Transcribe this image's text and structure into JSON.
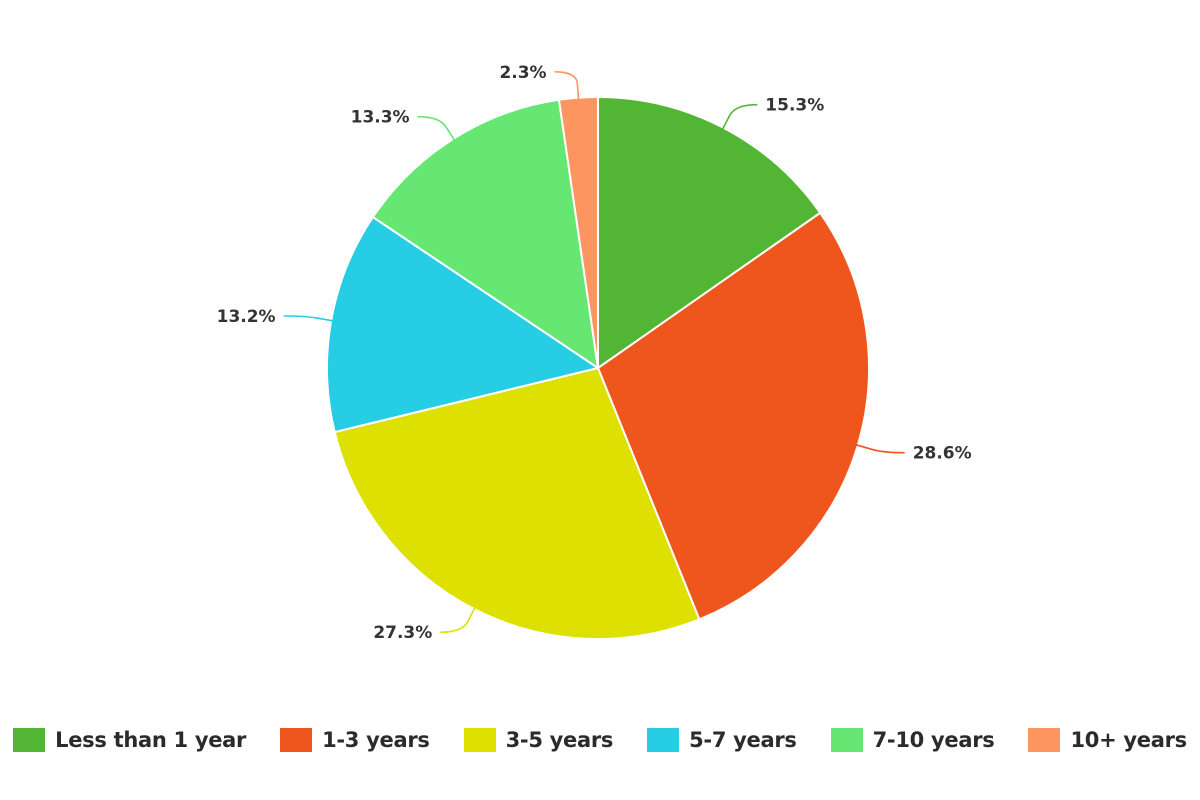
{
  "chart_data": {
    "type": "pie",
    "title": "",
    "legend_position": "bottom",
    "slices": [
      {
        "name": "Less than 1 year",
        "value": 15.3,
        "label": "15.3%",
        "color": "#52b634"
      },
      {
        "name": "1-3 years",
        "value": 28.6,
        "label": "28.6%",
        "color": "#ef561d"
      },
      {
        "name": "3-5 years",
        "value": 27.3,
        "label": "27.3%",
        "color": "#dde000"
      },
      {
        "name": "5-7 years",
        "value": 13.2,
        "label": "13.2%",
        "color": "#27cce5"
      },
      {
        "name": "7-10 years",
        "value": 13.3,
        "label": "13.3%",
        "color": "#66e672"
      },
      {
        "name": "10+ years",
        "value": 2.3,
        "label": "2.3%",
        "color": "#fc9560"
      }
    ]
  }
}
